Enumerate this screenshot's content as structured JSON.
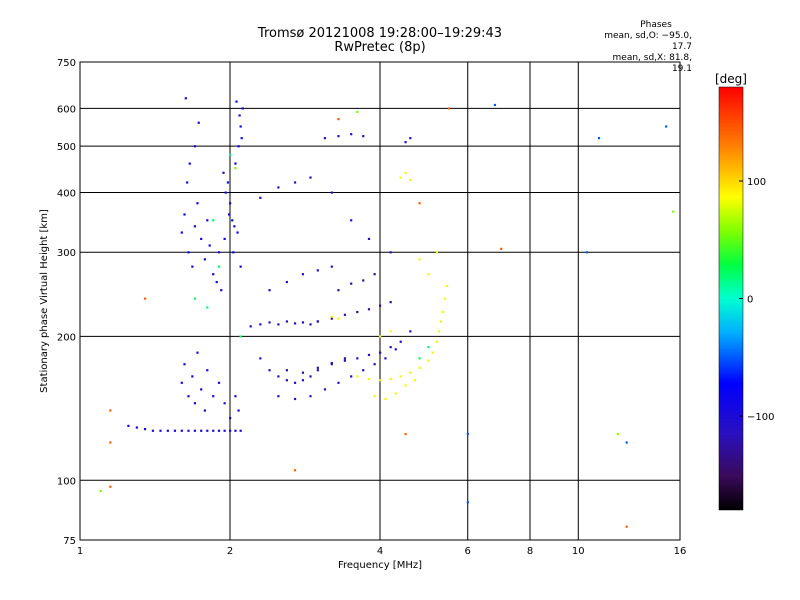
{
  "title": {
    "line1": "Tromsø 20121008 19:28:00–19:29:43",
    "line2": "RwPretec (8p)"
  },
  "phase_info": {
    "header": "Phases",
    "line1": "mean, sd,O: −95.0, 17.7",
    "line2": "mean, sd,X:  81.8, 19.1"
  },
  "chart_data": {
    "type": "scatter",
    "xlabel": "Frequency [MHz]",
    "ylabel": "Stationary phase Virtual Height [km]",
    "x_scale": "log",
    "y_scale": "log",
    "xlim": [
      1,
      16
    ],
    "ylim": [
      75,
      750
    ],
    "x_ticks": [
      1,
      2,
      4,
      6,
      8,
      10,
      16
    ],
    "x_tick_labels": [
      "1",
      "2",
      "4",
      "6",
      "8",
      "10",
      "16"
    ],
    "y_ticks": [
      75,
      100,
      200,
      300,
      400,
      500,
      600,
      750
    ],
    "y_tick_labels": [
      "75",
      "100",
      "200",
      "300",
      "400",
      "500",
      "600",
      "750"
    ],
    "grid": true,
    "colorbar": {
      "label": "[deg]",
      "range": [
        -180,
        180
      ],
      "ticks": [
        100,
        0,
        -100
      ],
      "tick_labels": [
        "100",
        "0",
        "−100"
      ],
      "colormap": "rainbow"
    },
    "series": [
      {
        "phase": -100,
        "points": [
          [
            1.25,
            130
          ],
          [
            1.3,
            129
          ],
          [
            1.35,
            128
          ],
          [
            1.4,
            127
          ],
          [
            1.45,
            127
          ],
          [
            1.5,
            127
          ],
          [
            1.55,
            127
          ],
          [
            1.6,
            127
          ],
          [
            1.65,
            127
          ],
          [
            1.7,
            127
          ],
          [
            1.75,
            127
          ],
          [
            1.8,
            127
          ],
          [
            1.85,
            127
          ],
          [
            1.9,
            127
          ],
          [
            1.95,
            127
          ],
          [
            2.0,
            127
          ],
          [
            2.05,
            127
          ],
          [
            2.1,
            127
          ],
          [
            1.6,
            160
          ],
          [
            1.62,
            175
          ],
          [
            1.65,
            150
          ],
          [
            1.68,
            165
          ],
          [
            1.7,
            145
          ],
          [
            1.72,
            185
          ],
          [
            1.75,
            155
          ],
          [
            1.78,
            140
          ],
          [
            1.8,
            170
          ],
          [
            1.85,
            150
          ],
          [
            1.9,
            160
          ],
          [
            1.95,
            145
          ],
          [
            2.0,
            135
          ],
          [
            2.05,
            150
          ],
          [
            2.08,
            140
          ]
        ]
      },
      {
        "phase": -95,
        "points": [
          [
            1.6,
            330
          ],
          [
            1.62,
            360
          ],
          [
            1.65,
            300
          ],
          [
            1.68,
            280
          ],
          [
            1.7,
            340
          ],
          [
            1.72,
            380
          ],
          [
            1.75,
            320
          ],
          [
            1.78,
            290
          ],
          [
            1.8,
            350
          ],
          [
            1.82,
            310
          ],
          [
            1.85,
            270
          ],
          [
            1.88,
            260
          ],
          [
            1.9,
            300
          ],
          [
            1.92,
            250
          ],
          [
            1.95,
            320
          ],
          [
            1.98,
            420
          ],
          [
            2.0,
            380
          ],
          [
            2.02,
            350
          ],
          [
            2.05,
            460
          ],
          [
            2.08,
            500
          ],
          [
            2.1,
            550
          ],
          [
            2.12,
            600
          ],
          [
            2.06,
            620
          ],
          [
            2.09,
            580
          ],
          [
            2.11,
            520
          ],
          [
            2.03,
            300
          ],
          [
            2.07,
            330
          ],
          [
            2.1,
            280
          ],
          [
            1.96,
            400
          ],
          [
            1.94,
            440
          ],
          [
            1.99,
            360
          ],
          [
            2.04,
            340
          ],
          [
            1.64,
            420
          ],
          [
            1.66,
            460
          ],
          [
            1.7,
            500
          ],
          [
            1.73,
            560
          ],
          [
            1.63,
            630
          ]
        ]
      },
      {
        "phase": -110,
        "points": [
          [
            2.2,
            210
          ],
          [
            2.3,
            212
          ],
          [
            2.4,
            214
          ],
          [
            2.5,
            212
          ],
          [
            2.6,
            215
          ],
          [
            2.7,
            213
          ],
          [
            2.8,
            214
          ],
          [
            2.9,
            212
          ],
          [
            3.0,
            215
          ],
          [
            2.3,
            180
          ],
          [
            2.4,
            170
          ],
          [
            2.5,
            165
          ],
          [
            2.6,
            162
          ],
          [
            2.7,
            160
          ],
          [
            2.8,
            162
          ],
          [
            2.9,
            165
          ],
          [
            3.0,
            170
          ],
          [
            3.2,
            175
          ],
          [
            3.4,
            178
          ],
          [
            3.6,
            180
          ],
          [
            3.8,
            183
          ],
          [
            4.0,
            185
          ],
          [
            4.2,
            190
          ],
          [
            4.4,
            195
          ],
          [
            4.6,
            205
          ],
          [
            2.5,
            150
          ],
          [
            2.7,
            148
          ],
          [
            2.9,
            150
          ],
          [
            3.1,
            155
          ],
          [
            3.3,
            160
          ],
          [
            3.5,
            165
          ],
          [
            3.7,
            170
          ],
          [
            3.9,
            175
          ],
          [
            4.1,
            180
          ],
          [
            4.3,
            188
          ],
          [
            2.4,
            250
          ],
          [
            2.6,
            260
          ],
          [
            2.8,
            270
          ],
          [
            3.0,
            275
          ],
          [
            3.2,
            280
          ],
          [
            2.3,
            390
          ],
          [
            2.5,
            410
          ],
          [
            2.7,
            420
          ],
          [
            2.9,
            430
          ],
          [
            3.1,
            520
          ],
          [
            3.3,
            525
          ],
          [
            3.5,
            530
          ],
          [
            3.7,
            525
          ],
          [
            4.5,
            510
          ],
          [
            4.6,
            520
          ],
          [
            3.2,
            400
          ],
          [
            3.5,
            350
          ],
          [
            3.8,
            320
          ],
          [
            4.2,
            300
          ]
        ]
      },
      {
        "phase": -130,
        "points": [
          [
            3.0,
            215
          ],
          [
            3.2,
            218
          ],
          [
            3.4,
            222
          ],
          [
            3.6,
            225
          ],
          [
            3.8,
            228
          ],
          [
            4.0,
            232
          ],
          [
            4.2,
            236
          ],
          [
            3.3,
            250
          ],
          [
            3.5,
            258
          ],
          [
            3.7,
            262
          ],
          [
            3.9,
            270
          ],
          [
            2.6,
            170
          ],
          [
            2.8,
            168
          ],
          [
            3.0,
            172
          ],
          [
            3.2,
            176
          ],
          [
            3.4,
            180
          ]
        ]
      },
      {
        "phase": 90,
        "points": [
          [
            3.6,
            165
          ],
          [
            3.8,
            163
          ],
          [
            4.0,
            162
          ],
          [
            4.2,
            163
          ],
          [
            4.4,
            165
          ],
          [
            4.6,
            168
          ],
          [
            4.8,
            172
          ],
          [
            5.0,
            178
          ],
          [
            5.1,
            185
          ],
          [
            5.2,
            195
          ],
          [
            5.25,
            205
          ],
          [
            5.3,
            215
          ],
          [
            5.35,
            225
          ],
          [
            5.4,
            240
          ],
          [
            5.45,
            255
          ],
          [
            3.9,
            150
          ],
          [
            4.1,
            148
          ],
          [
            4.3,
            152
          ],
          [
            4.5,
            158
          ],
          [
            4.7,
            162
          ],
          [
            4.4,
            430
          ],
          [
            4.5,
            440
          ],
          [
            4.6,
            425
          ],
          [
            4.0,
            200
          ],
          [
            4.2,
            205
          ],
          [
            3.2,
            220
          ],
          [
            3.3,
            218
          ],
          [
            5.0,
            270
          ],
          [
            5.2,
            300
          ],
          [
            4.8,
            290
          ]
        ]
      },
      {
        "phase": 20,
        "points": [
          [
            1.7,
            240
          ],
          [
            1.8,
            230
          ],
          [
            1.9,
            280
          ],
          [
            2.1,
            200
          ],
          [
            4.8,
            180
          ],
          [
            5.0,
            190
          ],
          [
            1.85,
            350
          ],
          [
            2.0,
            480
          ]
        ]
      },
      {
        "phase": 150,
        "points": [
          [
            1.15,
            97
          ],
          [
            1.15,
            140
          ],
          [
            1.15,
            120
          ],
          [
            1.35,
            240
          ],
          [
            2.7,
            105
          ],
          [
            4.5,
            125
          ],
          [
            3.3,
            570
          ],
          [
            7.0,
            305
          ],
          [
            12.5,
            80
          ],
          [
            4.8,
            380
          ],
          [
            5.5,
            600
          ]
        ]
      },
      {
        "phase": -60,
        "points": [
          [
            6.0,
            90
          ],
          [
            6.0,
            125
          ],
          [
            10.4,
            300
          ],
          [
            11.0,
            520
          ],
          [
            12.5,
            120
          ],
          [
            15.0,
            550
          ],
          [
            6.8,
            610
          ]
        ]
      },
      {
        "phase": 60,
        "points": [
          [
            15.5,
            365
          ],
          [
            12.0,
            125
          ],
          [
            1.1,
            95
          ],
          [
            2.05,
            450
          ],
          [
            3.6,
            590
          ]
        ]
      }
    ]
  }
}
